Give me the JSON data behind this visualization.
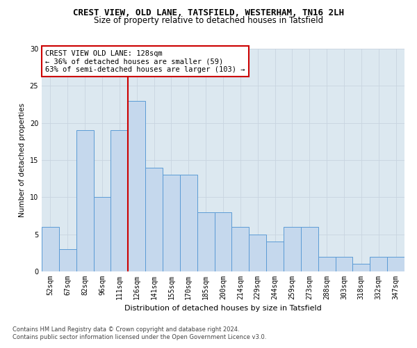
{
  "title": "CREST VIEW, OLD LANE, TATSFIELD, WESTERHAM, TN16 2LH",
  "subtitle": "Size of property relative to detached houses in Tatsfield",
  "xlabel": "Distribution of detached houses by size in Tatsfield",
  "ylabel": "Number of detached properties",
  "bar_labels": [
    "52sqm",
    "67sqm",
    "82sqm",
    "96sqm",
    "111sqm",
    "126sqm",
    "141sqm",
    "155sqm",
    "170sqm",
    "185sqm",
    "200sqm",
    "214sqm",
    "229sqm",
    "244sqm",
    "259sqm",
    "273sqm",
    "288sqm",
    "303sqm",
    "318sqm",
    "332sqm",
    "347sqm"
  ],
  "bar_values": [
    6,
    3,
    19,
    10,
    19,
    23,
    14,
    13,
    13,
    8,
    8,
    6,
    5,
    4,
    6,
    6,
    2,
    2,
    1,
    2,
    2
  ],
  "bar_color": "#c5d8ed",
  "bar_edge_color": "#5b9bd5",
  "vline_index": 5,
  "vline_color": "#cc0000",
  "annotation_text": "CREST VIEW OLD LANE: 128sqm\n← 36% of detached houses are smaller (59)\n63% of semi-detached houses are larger (103) →",
  "annotation_box_color": "#ffffff",
  "annotation_box_edge": "#cc0000",
  "ylim": [
    0,
    30
  ],
  "yticks": [
    0,
    5,
    10,
    15,
    20,
    25,
    30
  ],
  "grid_color": "#c8d4e0",
  "bg_color": "#dce8f0",
  "footer_line1": "Contains HM Land Registry data © Crown copyright and database right 2024.",
  "footer_line2": "Contains public sector information licensed under the Open Government Licence v3.0.",
  "title_fontsize": 9,
  "subtitle_fontsize": 8.5,
  "xlabel_fontsize": 8,
  "ylabel_fontsize": 7.5,
  "tick_fontsize": 7,
  "annotation_fontsize": 7.5,
  "footer_fontsize": 6
}
